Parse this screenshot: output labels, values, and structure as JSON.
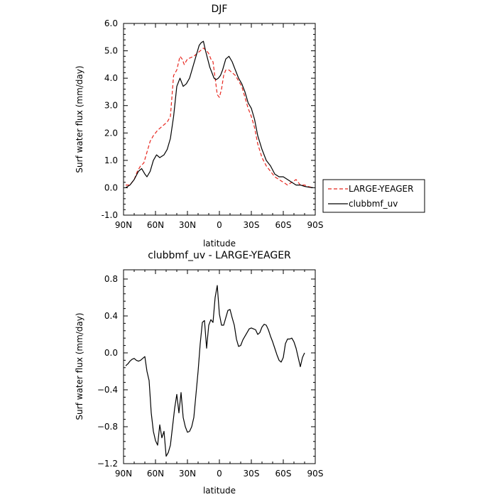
{
  "chart_data": [
    {
      "type": "line",
      "title": "DJF",
      "xlabel": "latitude",
      "ylabel": "Surf water flux (mm/day)",
      "xlim": [
        90,
        -90
      ],
      "ylim": [
        -1.0,
        6.0
      ],
      "x_ticks": [
        90,
        60,
        30,
        0,
        -30,
        -60,
        -90
      ],
      "x_tick_labels": [
        "90N",
        "60N",
        "30N",
        "0",
        "30S",
        "60S",
        "90S"
      ],
      "y_ticks": [
        -1.0,
        0.0,
        1.0,
        2.0,
        3.0,
        4.0,
        5.0,
        6.0
      ],
      "y_tick_labels": [
        "-1.0",
        "0.0",
        "1.0",
        "2.0",
        "3.0",
        "4.0",
        "5.0",
        "6.0"
      ],
      "grid": false,
      "legend_placement": "right",
      "series": [
        {
          "name": "LARGE-YEAGER",
          "color": "#e8261e",
          "dash": "dashed",
          "x": [
            88,
            84,
            80,
            77,
            74,
            71,
            68,
            65,
            62,
            58,
            55,
            52,
            49,
            46,
            43,
            40,
            37,
            35,
            33,
            30,
            27,
            24,
            21,
            18,
            15,
            12,
            10,
            8,
            6,
            4,
            2,
            0,
            -2,
            -4,
            -6,
            -9,
            -12,
            -15,
            -18,
            -21,
            -24,
            -27,
            -30,
            -33,
            -36,
            -40,
            -44,
            -48,
            -52,
            -56,
            -60,
            -64,
            -68,
            -72,
            -76,
            -80,
            -83,
            -86,
            -88
          ],
          "y": [
            0.1,
            0.1,
            0.3,
            0.6,
            0.8,
            0.9,
            1.3,
            1.7,
            1.9,
            2.1,
            2.2,
            2.3,
            2.4,
            2.6,
            4.1,
            4.3,
            4.8,
            4.7,
            4.5,
            4.7,
            4.75,
            4.8,
            4.9,
            5.0,
            5.1,
            5.0,
            4.9,
            4.7,
            4.6,
            4.0,
            3.4,
            3.3,
            3.6,
            4.1,
            4.3,
            4.3,
            4.2,
            4.1,
            3.9,
            3.7,
            3.3,
            2.9,
            2.6,
            2.2,
            1.6,
            1.1,
            0.8,
            0.6,
            0.4,
            0.3,
            0.2,
            0.1,
            0.2,
            0.3,
            0.1,
            0.1,
            0.05,
            0.02,
            0.0
          ]
        },
        {
          "name": "clubbmf_uv",
          "color": "#000000",
          "dash": "solid",
          "x": [
            88,
            84,
            80,
            76,
            73,
            70,
            68,
            65,
            62,
            59,
            56,
            52,
            49,
            46,
            43,
            40,
            37,
            34,
            31,
            28,
            25,
            22,
            19,
            17,
            15,
            13,
            11,
            9,
            7,
            5,
            3,
            1,
            -1,
            -3,
            -6,
            -9,
            -12,
            -15,
            -18,
            -21,
            -24,
            -27,
            -30,
            -33,
            -36,
            -40,
            -44,
            -48,
            -52,
            -56,
            -60,
            -64,
            -68,
            -72,
            -76,
            -80,
            -84,
            -88
          ],
          "y": [
            0.0,
            0.1,
            0.3,
            0.6,
            0.7,
            0.5,
            0.4,
            0.6,
            1.0,
            1.2,
            1.1,
            1.2,
            1.4,
            1.8,
            2.6,
            3.7,
            4.0,
            3.7,
            3.8,
            4.0,
            4.4,
            4.8,
            5.2,
            5.3,
            5.35,
            5.0,
            4.7,
            4.4,
            4.2,
            4.0,
            3.95,
            4.0,
            4.1,
            4.3,
            4.7,
            4.8,
            4.6,
            4.3,
            4.0,
            3.8,
            3.5,
            3.1,
            2.9,
            2.5,
            1.9,
            1.4,
            1.0,
            0.8,
            0.5,
            0.4,
            0.4,
            0.3,
            0.2,
            0.1,
            0.1,
            0.05,
            0.02,
            0.0
          ]
        }
      ]
    },
    {
      "type": "line",
      "title": "clubbmf_uv - LARGE-YEAGER",
      "xlabel": "latitude",
      "ylabel": "Surf water flux (mm/day)",
      "xlim": [
        90,
        -90
      ],
      "ylim": [
        -1.2,
        0.9
      ],
      "x_ticks": [
        90,
        60,
        30,
        0,
        -30,
        -60,
        -90
      ],
      "x_tick_labels": [
        "90N",
        "60N",
        "30N",
        "0",
        "30S",
        "60S",
        "90S"
      ],
      "y_ticks": [
        -1.2,
        -0.8,
        -0.4,
        0.0,
        0.4,
        0.8
      ],
      "y_tick_labels": [
        "−1.2",
        "−0.8",
        "−0.4",
        "0.0",
        "0.4",
        "0.8"
      ],
      "grid": false,
      "series": [
        {
          "color": "#000000",
          "dash": "solid",
          "x": [
            88,
            86,
            84,
            82,
            80,
            78,
            76,
            74,
            72,
            70,
            68,
            66,
            64,
            62,
            60,
            58,
            56,
            54,
            52,
            50,
            48,
            46,
            44,
            42,
            40,
            38,
            36,
            34,
            32,
            30,
            28,
            26,
            24,
            22,
            20,
            18,
            16,
            14,
            12,
            10,
            8,
            6,
            4,
            2,
            0,
            -2,
            -4,
            -6,
            -8,
            -10,
            -12,
            -14,
            -16,
            -18,
            -20,
            -22,
            -24,
            -26,
            -28,
            -30,
            -32,
            -34,
            -36,
            -38,
            -40,
            -42,
            -44,
            -46,
            -48,
            -50,
            -52,
            -54,
            -56,
            -58,
            -60,
            -62,
            -64,
            -66,
            -68,
            -70,
            -72,
            -74,
            -76,
            -78,
            -80
          ],
          "y": [
            -0.14,
            -0.12,
            -0.09,
            -0.07,
            -0.06,
            -0.08,
            -0.09,
            -0.08,
            -0.06,
            -0.04,
            -0.2,
            -0.3,
            -0.65,
            -0.85,
            -0.95,
            -1.0,
            -0.78,
            -0.92,
            -0.85,
            -1.12,
            -1.08,
            -1.0,
            -0.8,
            -0.6,
            -0.45,
            -0.65,
            -0.43,
            -0.7,
            -0.8,
            -0.86,
            -0.85,
            -0.8,
            -0.7,
            -0.45,
            -0.2,
            0.1,
            0.33,
            0.35,
            0.05,
            0.3,
            0.36,
            0.33,
            0.6,
            0.73,
            0.42,
            0.3,
            0.3,
            0.38,
            0.46,
            0.47,
            0.38,
            0.3,
            0.15,
            0.07,
            0.08,
            0.14,
            0.18,
            0.22,
            0.26,
            0.27,
            0.26,
            0.25,
            0.2,
            0.22,
            0.28,
            0.31,
            0.3,
            0.25,
            0.18,
            0.12,
            0.05,
            -0.02,
            -0.08,
            -0.1,
            -0.05,
            0.1,
            0.15,
            0.15,
            0.16,
            0.12,
            0.05,
            -0.05,
            -0.15,
            -0.05,
            0.0
          ]
        }
      ]
    }
  ]
}
